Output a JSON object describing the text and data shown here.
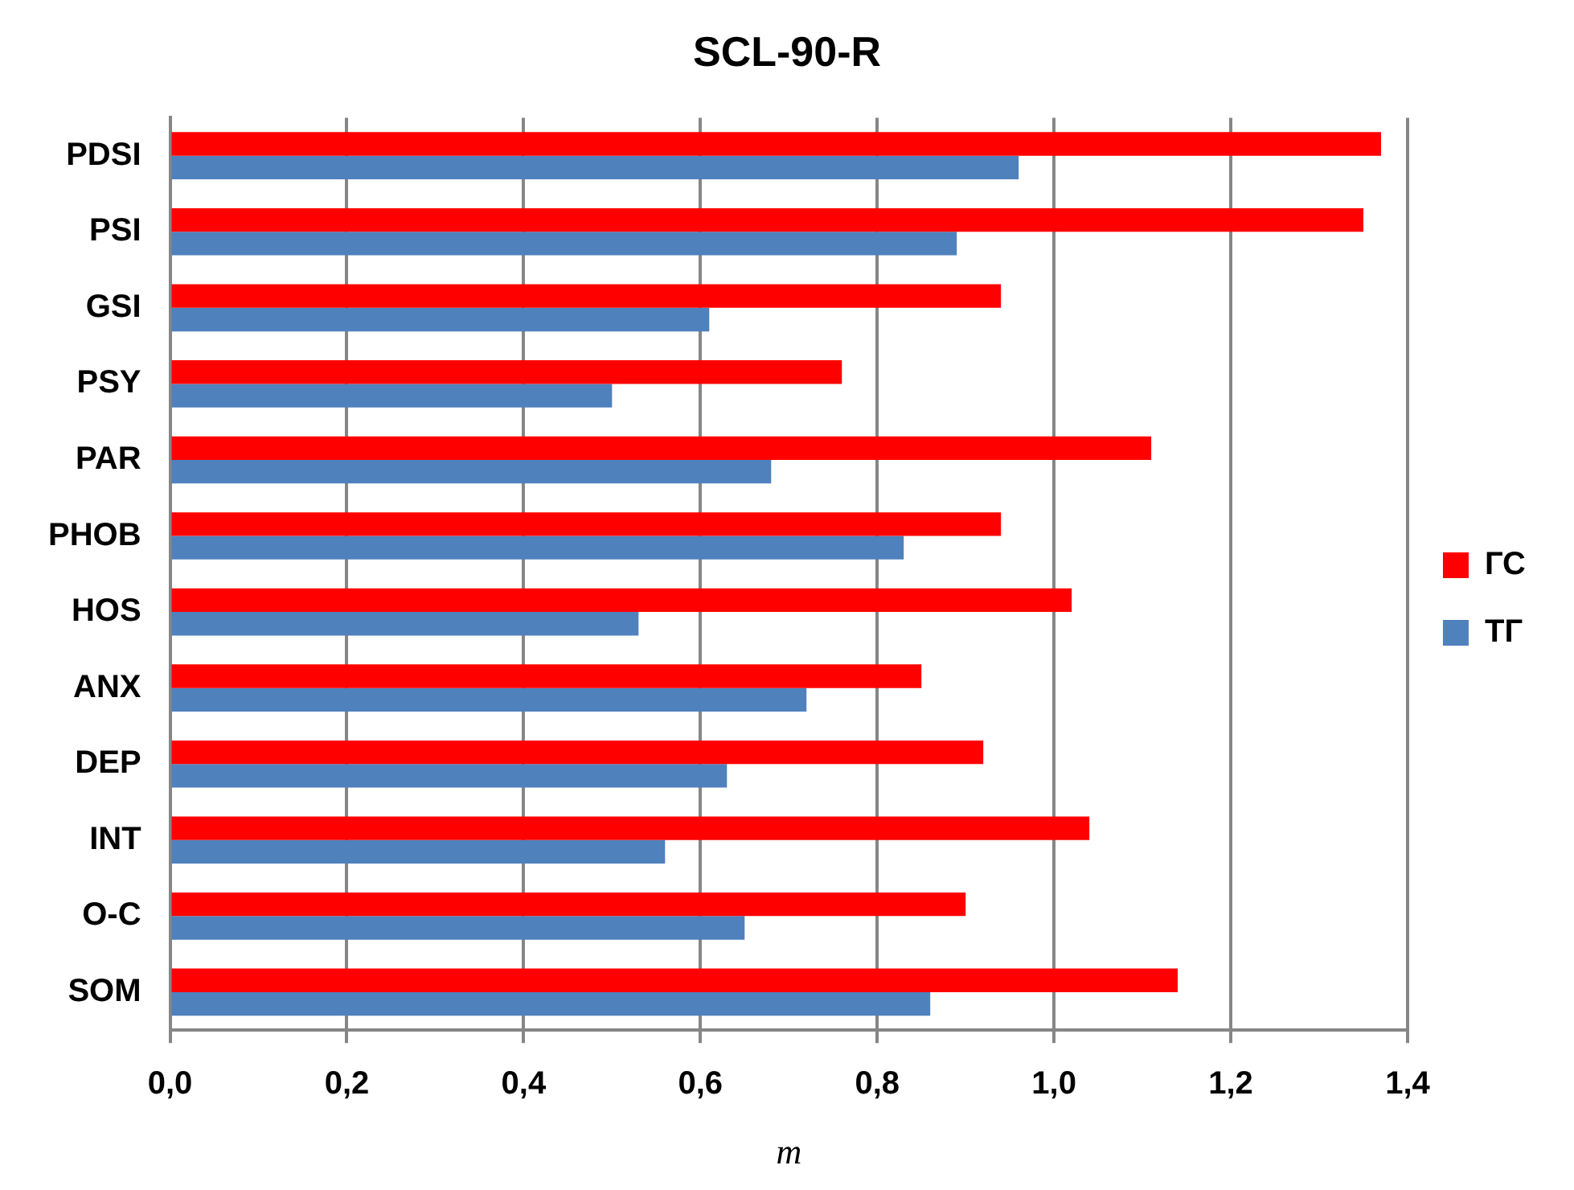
{
  "chart_data": {
    "type": "bar",
    "orientation": "horizontal",
    "title": "SCL-90-R",
    "xlabel": "m",
    "categories": [
      "PDSI",
      "PSI",
      "GSI",
      "PSY",
      "PAR",
      "PHOB",
      "HOS",
      "ANX",
      "DEP",
      "INT",
      "O-C",
      "SOM"
    ],
    "series": [
      {
        "name": "ГС",
        "color": "#ff0000",
        "values": [
          1.37,
          1.35,
          0.94,
          0.76,
          1.11,
          0.94,
          1.02,
          0.85,
          0.92,
          1.04,
          0.9,
          1.14
        ]
      },
      {
        "name": "ТГ",
        "color": "#4f81bd",
        "values": [
          0.96,
          0.89,
          0.61,
          0.5,
          0.68,
          0.83,
          0.53,
          0.72,
          0.63,
          0.56,
          0.65,
          0.86
        ]
      }
    ],
    "xlim": [
      0,
      1.4
    ],
    "xticks": [
      {
        "value": 0,
        "label": "0,0"
      },
      {
        "value": 0.2,
        "label": "0,2"
      },
      {
        "value": 0.4,
        "label": "0,4"
      },
      {
        "value": 0.6,
        "label": "0,6"
      },
      {
        "value": 0.8,
        "label": "0,8"
      },
      {
        "value": 1,
        "label": "1,0"
      },
      {
        "value": 1.2,
        "label": "1,2"
      },
      {
        "value": 1.4,
        "label": "1,4"
      }
    ],
    "grid": "x",
    "legend": "right"
  }
}
